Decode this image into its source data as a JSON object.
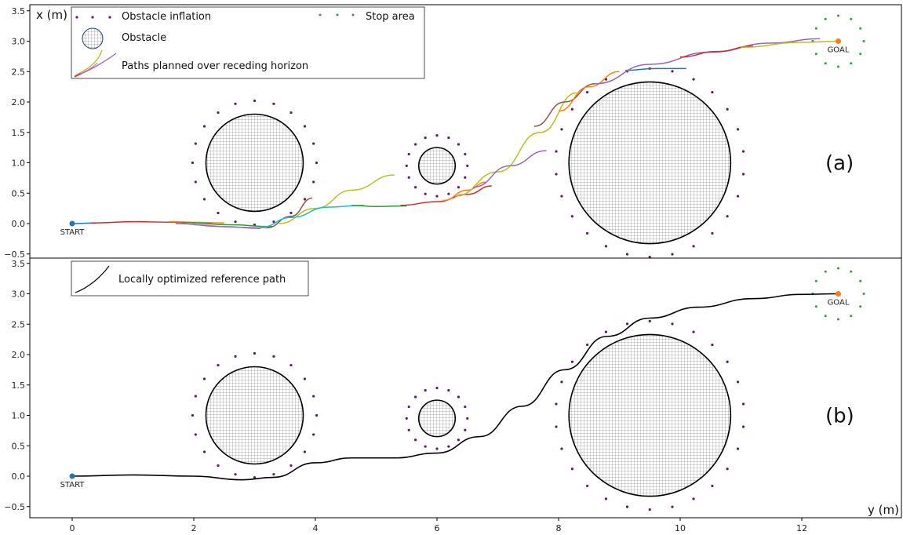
{
  "figure": {
    "x_axis_label": "y (m)",
    "y_axis_label": "x (m)",
    "y_ticks": [
      "3.5",
      "3.0",
      "2.5",
      "2.0",
      "1.5",
      "1.0",
      "0.5",
      "0.0",
      "−0.5"
    ],
    "x_ticks": [
      "0",
      "2",
      "4",
      "6",
      "8",
      "10",
      "12"
    ],
    "start_label": "START",
    "goal_label": "GOAL"
  },
  "chart_data": [
    {
      "type": "line",
      "panel_label": "(a)",
      "ylim": [
        -0.5,
        3.5
      ],
      "xlim": [
        -0.7,
        13.2
      ],
      "legend": {
        "position": "top-left",
        "entries": [
          "Obstacle inflation",
          "Obstacle",
          "Paths planned over receding horizon",
          "Stop area"
        ]
      },
      "start": [
        0,
        0
      ],
      "goal": [
        12.6,
        3.0
      ],
      "obstacles": [
        {
          "center": [
            3.0,
            1.0
          ],
          "radius": 0.8,
          "inflation_radius": 1.02
        },
        {
          "center": [
            6.0,
            0.95
          ],
          "radius": 0.3,
          "inflation_radius": 0.5
        },
        {
          "center": [
            9.5,
            1.0
          ],
          "radius": 1.33,
          "inflation_radius": 1.55
        }
      ],
      "stop_area": {
        "center": [
          12.6,
          3.0
        ],
        "radius": 0.42
      },
      "series": [
        {
          "color": "#1f77b4",
          "x": [
            0,
            0.4
          ],
          "y": [
            0.0,
            0.01
          ]
        },
        {
          "color": "#d62728",
          "x": [
            0.3,
            1.0,
            1.8,
            2.3
          ],
          "y": [
            0.01,
            0.03,
            0.02,
            0.0
          ]
        },
        {
          "color": "#ff7f0e",
          "x": [
            1.6,
            2.1,
            2.5
          ],
          "y": [
            0.03,
            0.02,
            0.01
          ]
        },
        {
          "color": "#2ca02c",
          "x": [
            1.8,
            2.6,
            3.3
          ],
          "y": [
            0.02,
            -0.02,
            -0.05
          ]
        },
        {
          "color": "#e377c2",
          "x": [
            2.0,
            2.7,
            3.2
          ],
          "y": [
            -0.02,
            -0.06,
            -0.07
          ]
        },
        {
          "color": "#9467bd",
          "x": [
            1.7,
            2.5,
            3.1
          ],
          "y": [
            0.0,
            -0.05,
            -0.08
          ]
        },
        {
          "color": "#8c564b",
          "x": [
            3.2,
            3.6,
            3.95
          ],
          "y": [
            -0.07,
            0.12,
            0.42
          ]
        },
        {
          "color": "#bcbd22",
          "x": [
            3.4,
            4.0,
            4.6,
            5.3
          ],
          "y": [
            0.0,
            0.25,
            0.55,
            0.8
          ]
        },
        {
          "color": "#17becf",
          "x": [
            3.1,
            3.6,
            4.2,
            4.8
          ],
          "y": [
            -0.06,
            0.1,
            0.27,
            0.3
          ]
        },
        {
          "color": "#2ca02c",
          "x": [
            4.6,
            5.0,
            5.5
          ],
          "y": [
            0.3,
            0.28,
            0.29
          ]
        },
        {
          "color": "#d62728",
          "x": [
            5.4,
            6.0,
            6.5,
            6.9
          ],
          "y": [
            0.3,
            0.36,
            0.48,
            0.62
          ]
        },
        {
          "color": "#ff7f0e",
          "x": [
            6.1,
            6.5,
            6.8
          ],
          "y": [
            0.38,
            0.55,
            0.68
          ]
        },
        {
          "color": "#bcbd22",
          "x": [
            6.3,
            7.0,
            7.7,
            8.3
          ],
          "y": [
            0.45,
            0.85,
            1.5,
            2.15
          ]
        },
        {
          "color": "#9467bd",
          "x": [
            6.6,
            7.2,
            7.8
          ],
          "y": [
            0.6,
            0.95,
            1.2
          ]
        },
        {
          "color": "#8c564b",
          "x": [
            7.6,
            8.1,
            8.6
          ],
          "y": [
            1.6,
            2.0,
            2.3
          ]
        },
        {
          "color": "#ff7f0e",
          "x": [
            8.0,
            8.5,
            9.0
          ],
          "y": [
            1.85,
            2.25,
            2.5
          ]
        },
        {
          "color": "#1f77b4",
          "x": [
            9.1,
            9.6,
            10.1
          ],
          "y": [
            2.52,
            2.55,
            2.55
          ]
        },
        {
          "color": "#9467bd",
          "x": [
            8.6,
            9.5,
            10.5,
            11.5,
            12.3
          ],
          "y": [
            2.3,
            2.62,
            2.82,
            2.97,
            3.04
          ]
        },
        {
          "color": "#d62728",
          "x": [
            10.0,
            10.6,
            11.2
          ],
          "y": [
            2.74,
            2.83,
            2.92
          ]
        },
        {
          "color": "#bcbd22",
          "x": [
            11.0,
            12.0,
            12.6
          ],
          "y": [
            2.9,
            2.98,
            3.0
          ]
        }
      ],
      "legend_sample_series": [
        {
          "color": "#bcbd22",
          "x": [
            0,
            1
          ],
          "y": [
            0,
            1
          ]
        },
        {
          "color": "#e377c2",
          "x": [
            0,
            1
          ],
          "y": [
            0,
            0.75
          ]
        },
        {
          "color": "#9467bd",
          "x": [
            0,
            1
          ],
          "y": [
            0,
            0.6
          ]
        },
        {
          "color": "#d62728",
          "x": [
            0,
            0.2
          ],
          "y": [
            0,
            0.1
          ]
        }
      ]
    },
    {
      "type": "line",
      "panel_label": "(b)",
      "ylim": [
        -0.5,
        3.5
      ],
      "xlim": [
        -0.7,
        13.2
      ],
      "legend": {
        "position": "top-left",
        "entries": [
          "Locally optimized reference path"
        ]
      },
      "start": [
        0,
        0
      ],
      "goal": [
        12.6,
        3.0
      ],
      "obstacles": [
        {
          "center": [
            3.0,
            1.0
          ],
          "radius": 0.8,
          "inflation_radius": 1.02
        },
        {
          "center": [
            6.0,
            0.95
          ],
          "radius": 0.3,
          "inflation_radius": 0.5
        },
        {
          "center": [
            9.5,
            1.0
          ],
          "radius": 1.33,
          "inflation_radius": 1.55
        }
      ],
      "stop_area": {
        "center": [
          12.6,
          3.0
        ],
        "radius": 0.42
      },
      "series": [
        {
          "color": "#000000",
          "x": [
            0,
            1,
            2,
            2.8,
            3.3,
            4.0,
            4.6,
            5.3,
            6.0,
            6.7,
            7.4,
            8.1,
            8.8,
            9.5,
            10.3,
            11.2,
            12.0,
            12.6
          ],
          "y": [
            0.0,
            0.02,
            0.0,
            -0.06,
            -0.02,
            0.22,
            0.3,
            0.3,
            0.38,
            0.65,
            1.15,
            1.75,
            2.3,
            2.6,
            2.78,
            2.92,
            2.99,
            3.0
          ]
        }
      ]
    }
  ]
}
